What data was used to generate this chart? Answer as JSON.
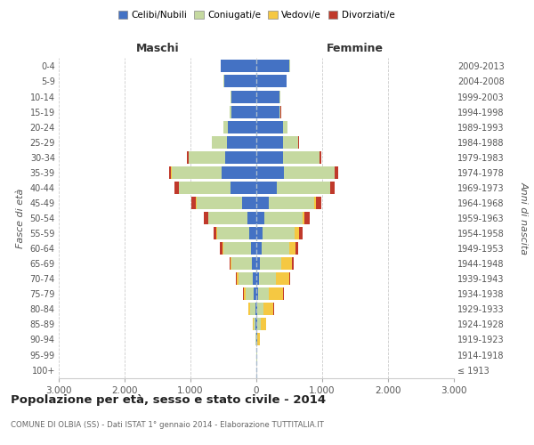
{
  "age_groups": [
    "100+",
    "95-99",
    "90-94",
    "85-89",
    "80-84",
    "75-79",
    "70-74",
    "65-69",
    "60-64",
    "55-59",
    "50-54",
    "45-49",
    "40-44",
    "35-39",
    "30-34",
    "25-29",
    "20-24",
    "15-19",
    "10-14",
    "5-9",
    "0-4"
  ],
  "birth_years": [
    "≤ 1913",
    "1914-1918",
    "1919-1923",
    "1924-1928",
    "1929-1933",
    "1934-1938",
    "1939-1943",
    "1944-1948",
    "1949-1953",
    "1954-1958",
    "1959-1963",
    "1964-1968",
    "1969-1973",
    "1974-1978",
    "1979-1983",
    "1984-1988",
    "1989-1993",
    "1994-1998",
    "1999-2003",
    "2004-2008",
    "2009-2013"
  ],
  "male": {
    "celibi": [
      2,
      3,
      5,
      10,
      20,
      35,
      50,
      65,
      85,
      105,
      140,
      210,
      390,
      530,
      470,
      440,
      430,
      385,
      385,
      490,
      540
    ],
    "coniugati": [
      0,
      2,
      8,
      30,
      70,
      130,
      220,
      310,
      420,
      490,
      590,
      700,
      790,
      760,
      560,
      230,
      70,
      15,
      5,
      5,
      5
    ],
    "vedovi": [
      0,
      1,
      5,
      15,
      25,
      30,
      25,
      15,
      10,
      8,
      5,
      3,
      2,
      2,
      2,
      2,
      1,
      0,
      0,
      0,
      0
    ],
    "divorziati": [
      0,
      0,
      0,
      2,
      5,
      10,
      15,
      15,
      35,
      45,
      60,
      75,
      65,
      38,
      18,
      6,
      3,
      2,
      0,
      0,
      0
    ]
  },
  "female": {
    "nubili": [
      2,
      4,
      8,
      12,
      20,
      30,
      40,
      55,
      75,
      95,
      125,
      185,
      315,
      425,
      405,
      405,
      405,
      355,
      355,
      455,
      505
    ],
    "coniugate": [
      0,
      3,
      10,
      50,
      90,
      160,
      260,
      330,
      420,
      490,
      580,
      700,
      800,
      760,
      550,
      230,
      65,
      15,
      5,
      5,
      5
    ],
    "vedove": [
      1,
      10,
      35,
      90,
      150,
      210,
      200,
      160,
      100,
      60,
      30,
      18,
      10,
      8,
      5,
      3,
      2,
      1,
      0,
      0,
      0
    ],
    "divorziate": [
      0,
      0,
      1,
      3,
      8,
      15,
      20,
      20,
      35,
      55,
      70,
      90,
      70,
      45,
      20,
      8,
      4,
      2,
      0,
      0,
      0
    ]
  },
  "colors": {
    "celibi": "#4472C4",
    "coniugati": "#c5d9a0",
    "vedovi": "#f5c842",
    "divorziati": "#c0392b"
  },
  "xlim": 3000,
  "xtick_vals": [
    -3000,
    -2000,
    -1000,
    0,
    1000,
    2000,
    3000
  ],
  "xtick_labels": [
    "3.000",
    "2.000",
    "1.000",
    "0",
    "1.000",
    "2.000",
    "3.000"
  ],
  "title": "Popolazione per età, sesso e stato civile - 2014",
  "subtitle": "COMUNE DI OLBIA (SS) - Dati ISTAT 1° gennaio 2014 - Elaborazione TUTTITALIA.IT",
  "ylabel_left": "Fasce di età",
  "ylabel_right": "Anni di nascita",
  "maschi_label": "Maschi",
  "femmine_label": "Femmine",
  "bg_color": "#ffffff",
  "grid_color": "#cccccc",
  "legend_labels": [
    "Celibi/Nubili",
    "Coniugati/e",
    "Vedovi/e",
    "Divorziati/e"
  ]
}
